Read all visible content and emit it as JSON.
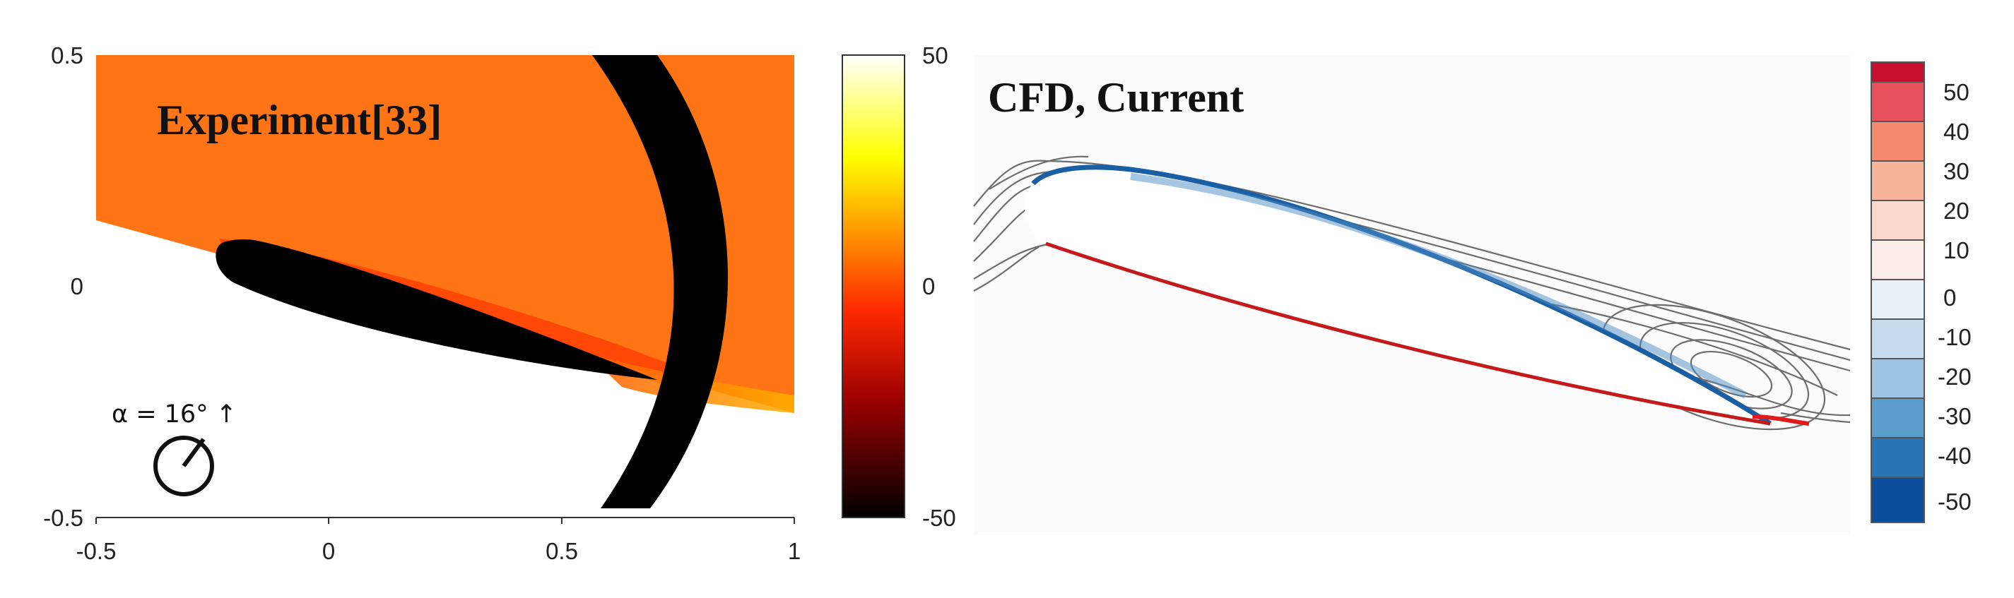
{
  "left_panel": {
    "title": "Experiment[33]",
    "alpha_label": "α = 16° ↑",
    "x_ticks": [
      "-0.5",
      "0",
      "0.5",
      "1"
    ],
    "y_ticks": [
      "0.5",
      "0",
      "-0.5"
    ],
    "colorbar": {
      "labels": [
        "50",
        "0",
        "-50"
      ],
      "colors": [
        "#ffffff",
        "#ffff00",
        "#ff8c00",
        "#ff2a00",
        "#b00000",
        "#000000"
      ]
    },
    "colors": {
      "field": "#ff7414",
      "body": "#000000"
    }
  },
  "right_panel": {
    "title": "CFD,  Current",
    "colorbar": {
      "labels": [
        "50",
        "40",
        "30",
        "20",
        "10",
        "0",
        "-10",
        "-20",
        "-30",
        "-40",
        "-50"
      ],
      "colors": [
        "#c8102e",
        "#e8505b",
        "#f48a70",
        "#f8b49a",
        "#fad8cb",
        "#fcecea",
        "#e8f0f8",
        "#c6dcee",
        "#9cc4e2",
        "#5b9ccd",
        "#2a74b5",
        "#0b4f9c"
      ]
    },
    "colors": {
      "streamline": "#555555",
      "suction": "#1a5fa3",
      "pressure": "#c41a1a"
    }
  }
}
